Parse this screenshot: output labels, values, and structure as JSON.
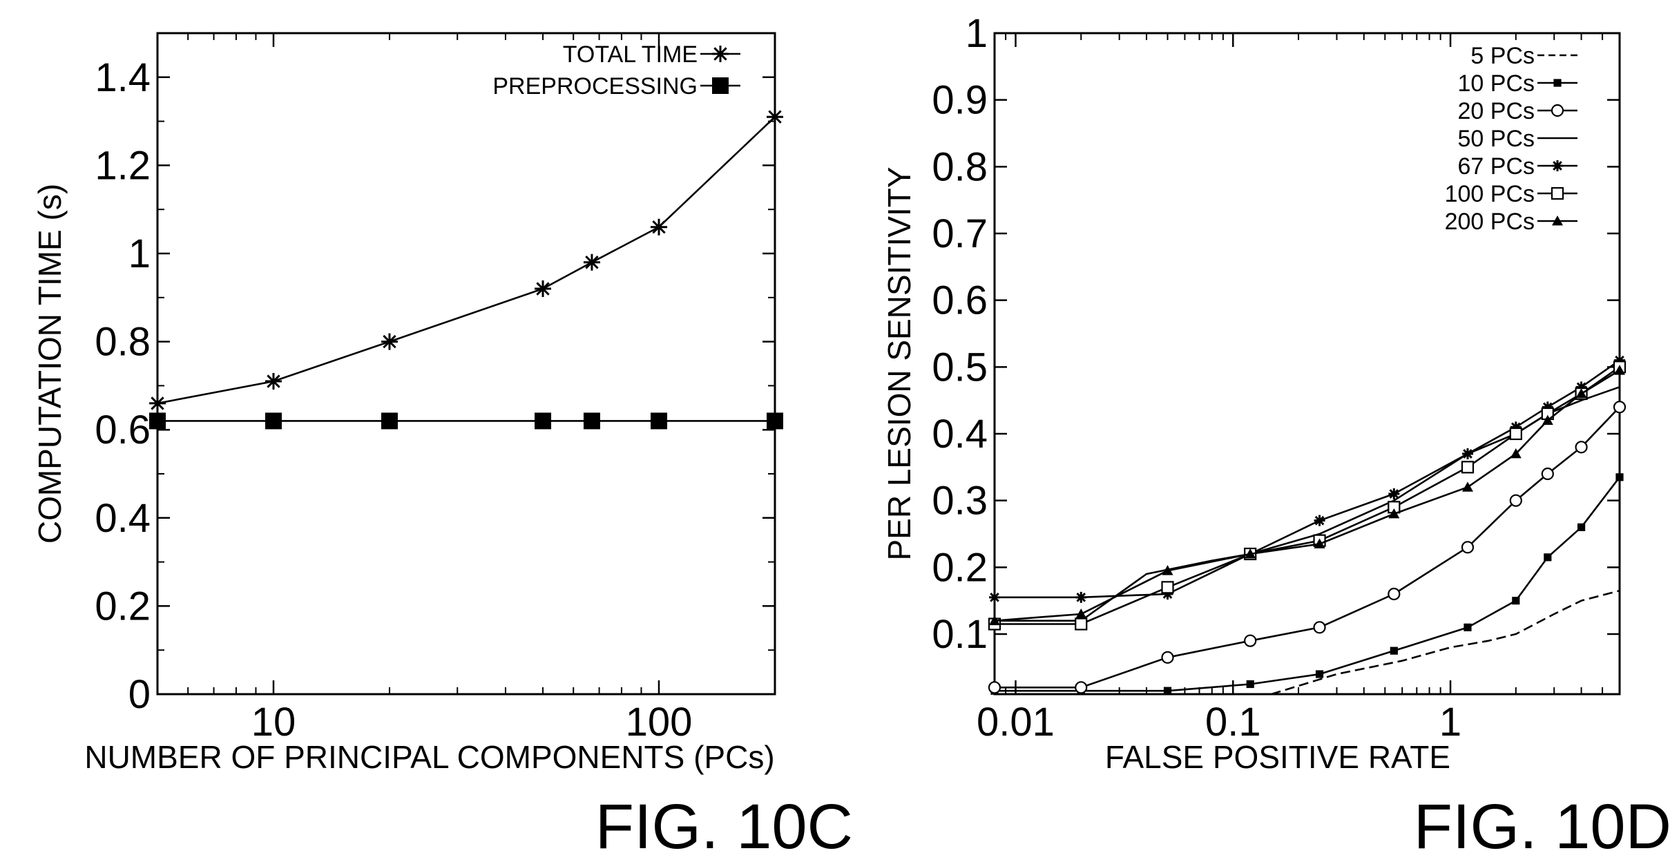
{
  "chart_data": [
    {
      "type": "line",
      "figure_label": "FIG. 10C",
      "title": "",
      "xlabel": "NUMBER OF PRINCIPAL COMPONENTS (PCs)",
      "ylabel": "COMPUTATION TIME (s)",
      "xscale": "log",
      "xlim": [
        5,
        200
      ],
      "ylim": [
        0,
        1.5
      ],
      "xticks": [
        {
          "value": 10,
          "label": "10"
        },
        {
          "value": 100,
          "label": "100"
        }
      ],
      "yticks": [
        {
          "value": 0,
          "label": "0"
        },
        {
          "value": 0.2,
          "label": "0.2"
        },
        {
          "value": 0.4,
          "label": "0.4"
        },
        {
          "value": 0.6,
          "label": "0.6"
        },
        {
          "value": 0.8,
          "label": "0.8"
        },
        {
          "value": 1,
          "label": "1"
        },
        {
          "value": 1.2,
          "label": "1.2"
        },
        {
          "value": 1.4,
          "label": "1.4"
        }
      ],
      "grid": false,
      "legend_position": "top-right",
      "series": [
        {
          "name": "TOTAL TIME",
          "marker": "asterisk",
          "x": [
            5,
            10,
            20,
            50,
            67,
            100,
            200
          ],
          "y": [
            0.66,
            0.71,
            0.8,
            0.92,
            0.98,
            1.06,
            1.31
          ]
        },
        {
          "name": "PREPROCESSING",
          "marker": "filled-square",
          "x": [
            5,
            10,
            20,
            50,
            67,
            100,
            200
          ],
          "y": [
            0.62,
            0.62,
            0.62,
            0.62,
            0.62,
            0.62,
            0.62
          ]
        }
      ]
    },
    {
      "type": "line",
      "figure_label": "FIG. 10D",
      "title": "",
      "xlabel": "FALSE POSITIVE RATE",
      "ylabel": "PER LESION SENSITIVITY",
      "xscale": "log",
      "xlim": [
        0.008,
        6
      ],
      "ylim": [
        0.01,
        1
      ],
      "xticks": [
        {
          "value": 0.01,
          "label": "0.01"
        },
        {
          "value": 0.1,
          "label": "0.1"
        },
        {
          "value": 1,
          "label": "1"
        }
      ],
      "yticks": [
        {
          "value": 0.1,
          "label": "0.1"
        },
        {
          "value": 0.2,
          "label": "0.2"
        },
        {
          "value": 0.3,
          "label": "0.3"
        },
        {
          "value": 0.4,
          "label": "0.4"
        },
        {
          "value": 0.5,
          "label": "0.5"
        },
        {
          "value": 0.6,
          "label": "0.6"
        },
        {
          "value": 0.7,
          "label": "0.7"
        },
        {
          "value": 0.8,
          "label": "0.8"
        },
        {
          "value": 0.9,
          "label": "0.9"
        },
        {
          "value": 1,
          "label": "1"
        }
      ],
      "grid": false,
      "legend_position": "top-right",
      "series": [
        {
          "name": "5 PCs",
          "marker": "none",
          "dash": "dashed",
          "x": [
            0.15,
            0.3,
            0.6,
            1.0,
            1.5,
            2.0,
            3.0,
            4.0,
            6.0
          ],
          "y": [
            0.01,
            0.04,
            0.06,
            0.08,
            0.09,
            0.1,
            0.13,
            0.15,
            0.165
          ]
        },
        {
          "name": "10 PCs",
          "marker": "small-cross",
          "x": [
            0.008,
            0.02,
            0.05,
            0.12,
            0.25,
            0.55,
            1.2,
            2.0,
            2.8,
            4.0,
            6.0
          ],
          "y": [
            0.015,
            0.015,
            0.015,
            0.025,
            0.04,
            0.075,
            0.11,
            0.15,
            0.215,
            0.26,
            0.335
          ]
        },
        {
          "name": "20 PCs",
          "marker": "open-circle",
          "x": [
            0.008,
            0.02,
            0.05,
            0.12,
            0.25,
            0.55,
            1.2,
            2.0,
            2.8,
            4.0,
            6.0
          ],
          "y": [
            0.02,
            0.02,
            0.065,
            0.09,
            0.11,
            0.16,
            0.23,
            0.3,
            0.34,
            0.38,
            0.44
          ]
        },
        {
          "name": "50 PCs",
          "marker": "none",
          "x": [
            0.008,
            0.02,
            0.04,
            0.08,
            0.12,
            0.25,
            0.55,
            1.2,
            2.0,
            2.8,
            4.0,
            6.0
          ],
          "y": [
            0.12,
            0.12,
            0.19,
            0.21,
            0.22,
            0.25,
            0.3,
            0.37,
            0.4,
            0.43,
            0.45,
            0.47
          ]
        },
        {
          "name": "67 PCs",
          "marker": "asterisk",
          "x": [
            0.008,
            0.02,
            0.05,
            0.12,
            0.25,
            0.55,
            1.2,
            2.0,
            2.8,
            4.0,
            6.0
          ],
          "y": [
            0.155,
            0.155,
            0.16,
            0.22,
            0.27,
            0.31,
            0.37,
            0.41,
            0.44,
            0.47,
            0.51
          ]
        },
        {
          "name": "100 PCs",
          "marker": "open-square",
          "x": [
            0.008,
            0.02,
            0.05,
            0.12,
            0.25,
            0.55,
            1.2,
            2.0,
            2.8,
            4.0,
            6.0
          ],
          "y": [
            0.115,
            0.115,
            0.17,
            0.22,
            0.24,
            0.29,
            0.35,
            0.4,
            0.43,
            0.46,
            0.5
          ]
        },
        {
          "name": "200 PCs",
          "marker": "triangle",
          "x": [
            0.008,
            0.02,
            0.05,
            0.12,
            0.25,
            0.55,
            1.2,
            2.0,
            2.8,
            4.0,
            6.0
          ],
          "y": [
            0.12,
            0.13,
            0.195,
            0.22,
            0.235,
            0.28,
            0.32,
            0.37,
            0.42,
            0.46,
            0.495
          ]
        }
      ]
    }
  ]
}
